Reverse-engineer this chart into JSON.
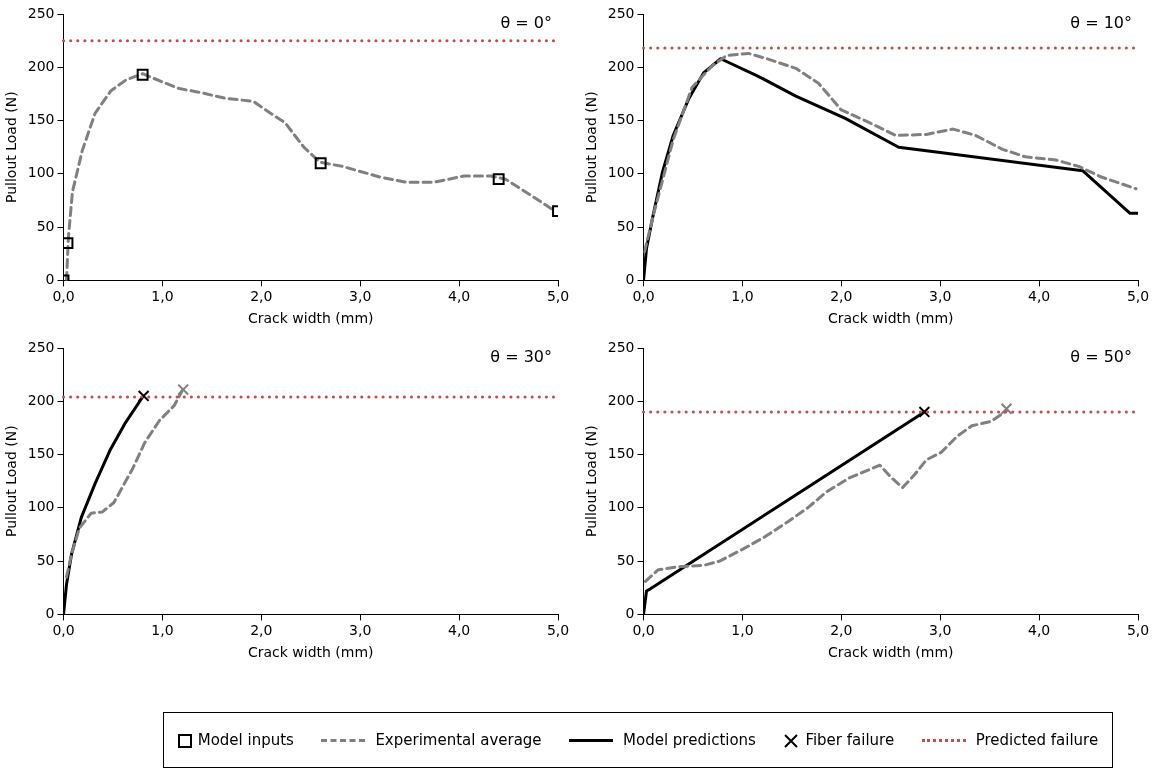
{
  "chart_data": [
    {
      "type": "line",
      "annotations": [
        "θ = 0°"
      ],
      "xlabel": "Crack width (mm)",
      "ylabel": "Pullout Load (N)",
      "xlim": [
        0,
        5
      ],
      "xticks": [
        {
          "value": 0,
          "label": "0,0"
        },
        {
          "value": 1,
          "label": "1,0"
        },
        {
          "value": 2,
          "label": "2,0"
        },
        {
          "value": 3,
          "label": "3,0"
        },
        {
          "value": 4,
          "label": "4,0"
        },
        {
          "value": 5,
          "label": "5,0"
        }
      ],
      "ylim": [
        0,
        250
      ],
      "yticks": [
        0,
        50,
        100,
        150,
        200,
        250
      ],
      "grid": false,
      "legend": "bottom",
      "ref_lines": [
        {
          "axis": "y",
          "value": 225,
          "label": "Predicted failure",
          "color": "#c0504d",
          "line_style": "dotted"
        }
      ],
      "series": [
        {
          "name": "Model inputs",
          "type": "scatter",
          "marker": "square",
          "color": "#000000",
          "x": [
            0,
            0.04,
            0.8,
            2.6,
            4.4,
            5.0
          ],
          "values": [
            0,
            35,
            193,
            110,
            95,
            65
          ]
        },
        {
          "name": "Experimental average",
          "type": "line",
          "line_style": "dashed",
          "marker": "none",
          "color": "#808080",
          "x": [
            0.03,
            0.05,
            0.09,
            0.19,
            0.32,
            0.48,
            0.63,
            0.8,
            0.98,
            1.17,
            1.4,
            1.63,
            1.92,
            2.09,
            2.24,
            2.43,
            2.59,
            2.82,
            3.2,
            3.47,
            3.74,
            4.05,
            4.32,
            4.47,
            4.74,
            4.97
          ],
          "values": [
            0,
            41,
            83,
            122,
            157,
            178,
            188,
            194,
            187,
            180,
            176,
            171,
            168,
            157,
            148,
            125,
            111,
            107,
            97,
            92,
            92,
            98,
            98,
            95,
            79,
            65
          ]
        }
      ]
    },
    {
      "type": "line",
      "annotations": [
        "θ = 10°"
      ],
      "xlabel": "Crack width (mm)",
      "ylabel": "Pullout Load (N)",
      "xlim": [
        0,
        5
      ],
      "xticks": [
        {
          "value": 0,
          "label": "0,0"
        },
        {
          "value": 1,
          "label": "1,0"
        },
        {
          "value": 2,
          "label": "2,0"
        },
        {
          "value": 3,
          "label": "3,0"
        },
        {
          "value": 4,
          "label": "4,0"
        },
        {
          "value": 5,
          "label": "5,0"
        }
      ],
      "ylim": [
        0,
        250
      ],
      "yticks": [
        0,
        50,
        100,
        150,
        200,
        250
      ],
      "grid": false,
      "legend": "bottom",
      "ref_lines": [
        {
          "axis": "y",
          "value": 218,
          "color": "#c0504d",
          "line_style": "dotted"
        }
      ],
      "series": [
        {
          "name": "Experimental average",
          "type": "line",
          "line_style": "dashed",
          "marker": "none",
          "color": "#808080",
          "x": [
            0.01,
            0.11,
            0.3,
            0.49,
            0.69,
            0.84,
            1.06,
            1.25,
            1.54,
            1.77,
            2.0,
            2.24,
            2.55,
            2.86,
            3.13,
            3.36,
            3.63,
            3.86,
            4.17,
            4.4,
            4.63,
            4.98
          ],
          "values": [
            27,
            65,
            132,
            181,
            201,
            211,
            213,
            208,
            199,
            185,
            160,
            150,
            136,
            137,
            142,
            136,
            123,
            116,
            113,
            107,
            97,
            86
          ]
        },
        {
          "name": "Model predictions",
          "type": "line",
          "line_style": "solid",
          "marker": "none",
          "color": "#000000",
          "x": [
            0,
            0.03,
            0.09,
            0.19,
            0.3,
            0.46,
            0.61,
            0.78,
            1.15,
            1.54,
            2.04,
            2.58,
            3.0,
            4.44,
            4.92,
            5.0
          ],
          "values": [
            0,
            30,
            58,
            101,
            136,
            171,
            195,
            208,
            192,
            173,
            152,
            125,
            120,
            103,
            63,
            63
          ]
        }
      ]
    },
    {
      "type": "line",
      "annotations": [
        "θ = 30°"
      ],
      "xlabel": "Crack width (mm)",
      "ylabel": "Pullout Load (N)",
      "xlim": [
        0,
        5
      ],
      "xticks": [
        {
          "value": 0,
          "label": "0,0"
        },
        {
          "value": 1,
          "label": "1,0"
        },
        {
          "value": 2,
          "label": "2,0"
        },
        {
          "value": 3,
          "label": "3,0"
        },
        {
          "value": 4,
          "label": "4,0"
        },
        {
          "value": 5,
          "label": "5,0"
        }
      ],
      "ylim": [
        0,
        250
      ],
      "yticks": [
        0,
        50,
        100,
        150,
        200,
        250
      ],
      "grid": false,
      "legend": "bottom",
      "ref_lines": [
        {
          "axis": "y",
          "value": 204,
          "color": "#c0504d",
          "line_style": "dotted"
        }
      ],
      "series": [
        {
          "name": "Experimental average",
          "type": "line",
          "line_style": "dashed",
          "marker": "none",
          "color": "#808080",
          "x": [
            0.03,
            0.08,
            0.16,
            0.28,
            0.39,
            0.51,
            0.7,
            0.82,
            0.97,
            1.12,
            1.2
          ],
          "values": [
            35,
            56,
            81,
            95,
            96,
            105,
            137,
            161,
            182,
            196,
            210
          ]
        },
        {
          "name": "Model predictions",
          "type": "line",
          "line_style": "solid",
          "marker": "none",
          "color": "#000000",
          "x": [
            0,
            0.03,
            0.08,
            0.18,
            0.32,
            0.47,
            0.62,
            0.8
          ],
          "values": [
            0,
            28,
            56,
            91,
            123,
            154,
            179,
            204
          ]
        },
        {
          "name": "Fiber failure",
          "type": "scatter",
          "marker": "cross",
          "color": "#000000",
          "x": [
            0.81
          ],
          "values": [
            205
          ]
        },
        {
          "type": "scatter",
          "marker": "cross",
          "color": "#808080",
          "x": [
            1.21
          ],
          "values": [
            211
          ]
        }
      ]
    },
    {
      "type": "line",
      "annotations": [
        "θ = 50°"
      ],
      "xlabel": "Crack width (mm)",
      "ylabel": "Pullout Load (N)",
      "xlim": [
        0,
        5
      ],
      "xticks": [
        {
          "value": 0,
          "label": "0,0"
        },
        {
          "value": 1,
          "label": "1,0"
        },
        {
          "value": 2,
          "label": "2,0"
        },
        {
          "value": 3,
          "label": "3,0"
        },
        {
          "value": 4,
          "label": "4,0"
        },
        {
          "value": 5,
          "label": "5,0"
        }
      ],
      "ylim": [
        0,
        250
      ],
      "yticks": [
        0,
        50,
        100,
        150,
        200,
        250
      ],
      "grid": false,
      "legend": "bottom",
      "ref_lines": [
        {
          "axis": "y",
          "value": 190,
          "color": "#c0504d",
          "line_style": "dotted"
        }
      ],
      "series": [
        {
          "name": "Experimental average",
          "type": "line",
          "line_style": "dashed",
          "marker": "none",
          "color": "#808080",
          "x": [
            0.02,
            0.15,
            0.38,
            0.61,
            0.77,
            1.0,
            1.23,
            1.46,
            1.66,
            1.85,
            2.08,
            2.39,
            2.51,
            2.62,
            2.74,
            2.86,
            3.01,
            3.17,
            3.32,
            3.51,
            3.67
          ],
          "values": [
            31,
            42,
            45,
            46,
            50,
            61,
            73,
            87,
            100,
            115,
            128,
            140,
            128,
            119,
            131,
            145,
            152,
            167,
            177,
            181,
            191
          ]
        },
        {
          "name": "Model predictions",
          "type": "line",
          "line_style": "solid",
          "marker": "none",
          "color": "#000000",
          "x": [
            0,
            0.03,
            0.07,
            2.84
          ],
          "values": [
            0,
            22,
            24,
            190
          ]
        },
        {
          "name": "Fiber failure",
          "type": "scatter",
          "marker": "cross",
          "color": "#000000",
          "x": [
            2.84
          ],
          "values": [
            190
          ]
        },
        {
          "type": "scatter",
          "marker": "cross",
          "color": "#808080",
          "x": [
            3.67
          ],
          "values": [
            193
          ]
        }
      ]
    }
  ]
}
